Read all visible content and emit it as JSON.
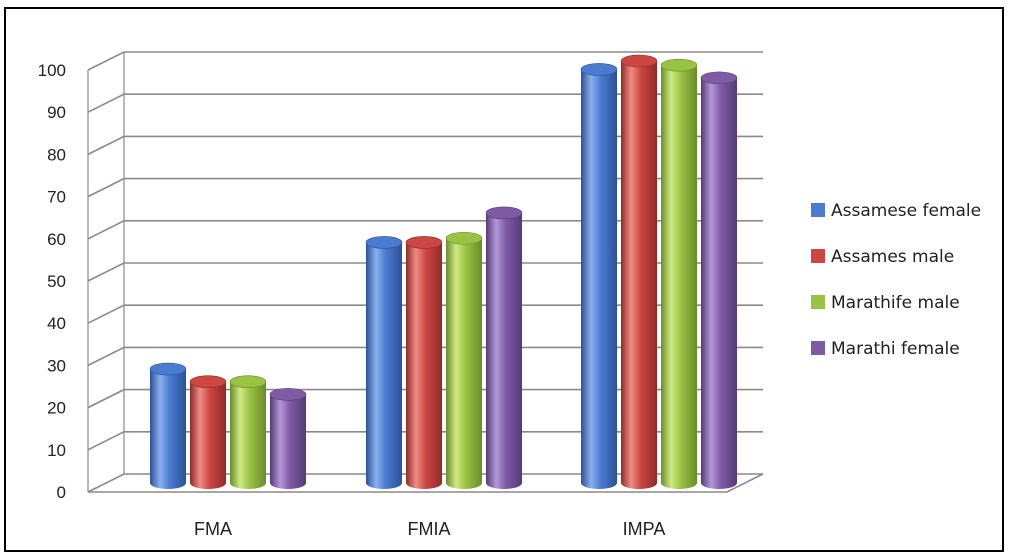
{
  "chart_data": {
    "type": "bar",
    "categories": [
      "FMA",
      "FMIA",
      "IMPA"
    ],
    "series": [
      {
        "name": "Assamese female",
        "values": [
          27,
          57,
          98
        ]
      },
      {
        "name": "Assames male",
        "values": [
          24,
          57,
          100
        ]
      },
      {
        "name": "Marathife male",
        "values": [
          24,
          58,
          99
        ]
      },
      {
        "name": "Marathi female",
        "values": [
          21,
          64,
          96
        ]
      }
    ],
    "yticks": [
      "0",
      "10",
      "20",
      "30",
      "40",
      "50",
      "60",
      "70",
      "80",
      "90",
      "100"
    ],
    "ylim": [
      0,
      100
    ],
    "grid": true,
    "legend_position": "right",
    "title": "",
    "xlabel": "",
    "ylabel": ""
  },
  "colors": {
    "series": [
      {
        "base": "#4a7bd0",
        "light": "#8ab0ee",
        "dark": "#2c5196"
      },
      {
        "base": "#cc4742",
        "light": "#ee8c86",
        "dark": "#8f2b27"
      },
      {
        "base": "#99c342",
        "light": "#cfea86",
        "dark": "#6a8c28"
      },
      {
        "base": "#7f5ba6",
        "light": "#b497d6",
        "dark": "#563a77"
      }
    ],
    "grid": "#8a8a8a"
  }
}
